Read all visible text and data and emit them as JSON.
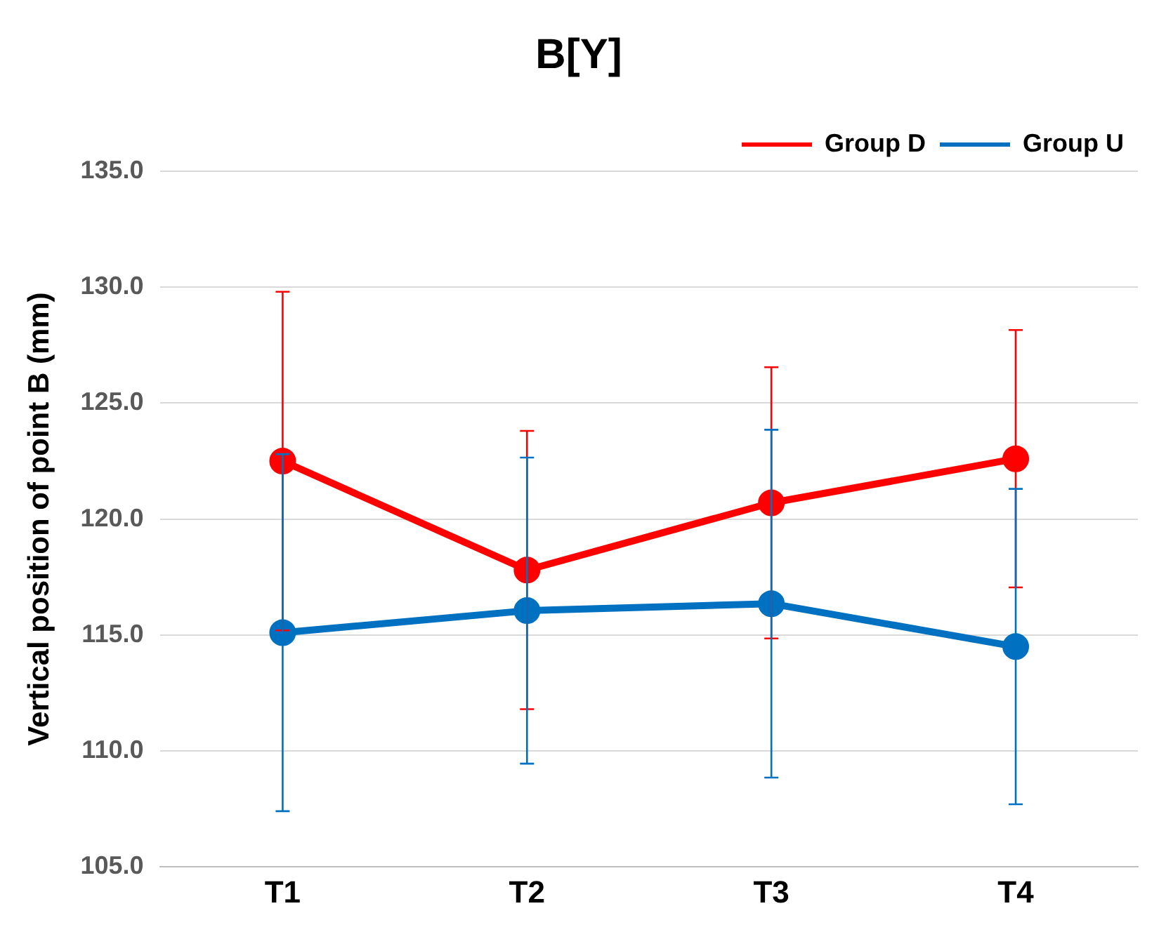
{
  "chart_data": {
    "type": "line",
    "title": "B[Y]",
    "ylabel": "Vertical position of point B (mm)",
    "categories": [
      "T1",
      "T2",
      "T3",
      "T4"
    ],
    "series": [
      {
        "name": "Group D",
        "color": "#ff0000",
        "values": [
          122.5,
          117.8,
          120.7,
          122.6
        ],
        "errors": [
          7.3,
          6.0,
          5.85,
          5.55
        ]
      },
      {
        "name": "Group U",
        "color": "#0070c0",
        "values": [
          115.1,
          116.05,
          116.35,
          114.5
        ],
        "errors": [
          7.7,
          6.6,
          7.5,
          6.8
        ]
      }
    ],
    "ylim": [
      105,
      135
    ],
    "yticks": [
      {
        "value": 105,
        "label": "105.0"
      },
      {
        "value": 110,
        "label": "110.0"
      },
      {
        "value": 115,
        "label": "115.0"
      },
      {
        "value": 120,
        "label": "120.0"
      },
      {
        "value": 125,
        "label": "125.0"
      },
      {
        "value": 130,
        "label": "130.0"
      },
      {
        "value": 135,
        "label": "135.0"
      }
    ],
    "grid": "y",
    "legend": "top right",
    "marker": "circle",
    "line_style": "solid"
  }
}
